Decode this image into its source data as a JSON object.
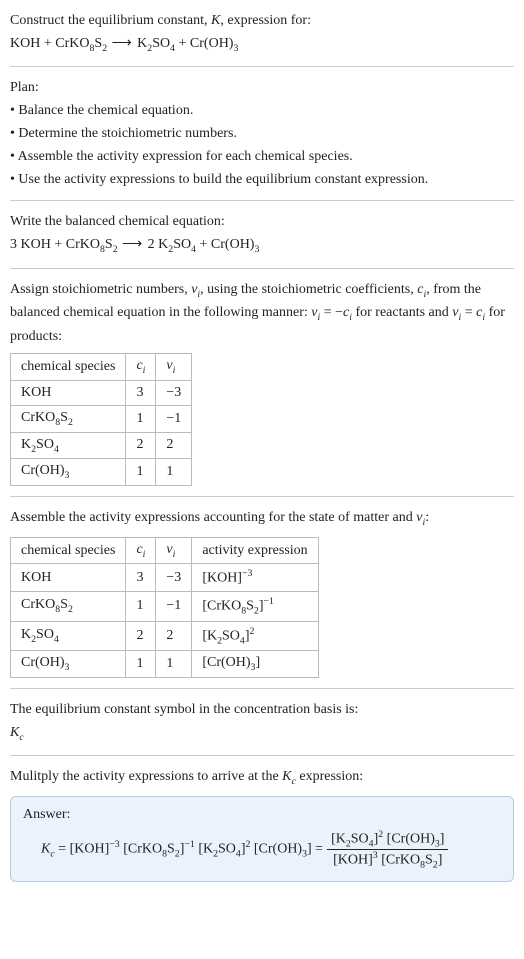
{
  "header": {
    "prompt": "Construct the equilibrium constant, ",
    "kvar": "K",
    "prompt2": ", expression for:"
  },
  "eq1": {
    "lhs1": "KOH",
    "plus1": " + ",
    "lhs2_a": "CrKO",
    "lhs2_sub1": "8",
    "lhs2_b": "S",
    "lhs2_sub2": "2",
    "arrow": " ⟶ ",
    "rhs1_a": "K",
    "rhs1_sub1": "2",
    "rhs1_b": "SO",
    "rhs1_sub2": "4",
    "plus2": " + ",
    "rhs2_a": "Cr(OH)",
    "rhs2_sub": "3"
  },
  "plan": {
    "title": "Plan:",
    "b1": "• Balance the chemical equation.",
    "b2": "• Determine the stoichiometric numbers.",
    "b3": "• Assemble the activity expression for each chemical species.",
    "b4": "• Use the activity expressions to build the equilibrium constant expression."
  },
  "balanced": {
    "title": "Write the balanced chemical equation:",
    "c1": "3 KOH",
    "plus1": " + ",
    "c2a": "CrKO",
    "c2s1": "8",
    "c2b": "S",
    "c2s2": "2",
    "arrow": " ⟶ ",
    "c3pre": "2 K",
    "c3s1": "2",
    "c3b": "SO",
    "c3s2": "4",
    "plus2": " + ",
    "c4a": "Cr(OH)",
    "c4s": "3"
  },
  "assign": {
    "t1": "Assign stoichiometric numbers, ",
    "nu": "ν",
    "nusub": "i",
    "t2": ", using the stoichiometric coefficients, ",
    "c": "c",
    "csub": "i",
    "t3": ", from the balanced chemical equation in the following manner: ",
    "rel1a": "ν",
    "rel1b": "i",
    "rel1c": " = −",
    "rel1d": "c",
    "rel1e": "i",
    "t4": " for reactants and ",
    "rel2a": "ν",
    "rel2b": "i",
    "rel2c": " = ",
    "rel2d": "c",
    "rel2e": "i",
    "t5": " for products:"
  },
  "table1": {
    "h1": "chemical species",
    "h2": "c",
    "h2sub": "i",
    "h3": "ν",
    "h3sub": "i",
    "r1c1": "KOH",
    "r1c2": "3",
    "r1c3": "−3",
    "r2c1a": "CrKO",
    "r2c1s1": "8",
    "r2c1b": "S",
    "r2c1s2": "2",
    "r2c2": "1",
    "r2c3": "−1",
    "r3c1a": "K",
    "r3c1s1": "2",
    "r3c1b": "SO",
    "r3c1s2": "4",
    "r3c2": "2",
    "r3c3": "2",
    "r4c1a": "Cr(OH)",
    "r4c1s": "3",
    "r4c2": "1",
    "r4c3": "1"
  },
  "assemble": {
    "t1": "Assemble the activity expressions accounting for the state of matter and ",
    "nu": "ν",
    "nusub": "i",
    "t2": ":"
  },
  "table2": {
    "h1": "chemical species",
    "h2": "c",
    "h2sub": "i",
    "h3": "ν",
    "h3sub": "i",
    "h4": "activity expression",
    "r1c1": "KOH",
    "r1c2": "3",
    "r1c3": "−3",
    "r1c4a": "[KOH]",
    "r1c4sup": "−3",
    "r2c1a": "CrKO",
    "r2c1s1": "8",
    "r2c1b": "S",
    "r2c1s2": "2",
    "r2c2": "1",
    "r2c3": "−1",
    "r2c4a": "[CrKO",
    "r2c4s1": "8",
    "r2c4b": "S",
    "r2c4s2": "2",
    "r2c4c": "]",
    "r2c4sup": "−1",
    "r3c1a": "K",
    "r3c1s1": "2",
    "r3c1b": "SO",
    "r3c1s2": "4",
    "r3c2": "2",
    "r3c3": "2",
    "r3c4a": "[K",
    "r3c4s1": "2",
    "r3c4b": "SO",
    "r3c4s2": "4",
    "r3c4c": "]",
    "r3c4sup": "2",
    "r4c1a": "Cr(OH)",
    "r4c1s": "3",
    "r4c2": "1",
    "r4c3": "1",
    "r4c4a": "[Cr(OH)",
    "r4c4s": "3",
    "r4c4b": "]"
  },
  "symbol": {
    "t1": "The equilibrium constant symbol in the concentration basis is:",
    "k": "K",
    "ksub": "c"
  },
  "mult": {
    "t1": "Mulitply the activity expressions to arrive at the ",
    "k": "K",
    "ksub": "c",
    "t2": " expression:"
  },
  "answer": {
    "label": "Answer:",
    "k": "K",
    "ksub": "c",
    "eq": " = ",
    "p1a": "[KOH]",
    "p1sup": "−3",
    "p2a": " [CrKO",
    "p2s1": "8",
    "p2b": "S",
    "p2s2": "2",
    "p2c": "]",
    "p2sup": "−1",
    "p3a": " [K",
    "p3s1": "2",
    "p3b": "SO",
    "p3s2": "4",
    "p3c": "]",
    "p3sup": "2",
    "p4a": " [Cr(OH)",
    "p4s": "3",
    "p4b": "] = ",
    "num1a": "[K",
    "num1s1": "2",
    "num1b": "SO",
    "num1s2": "4",
    "num1c": "]",
    "num1sup": "2",
    "num2a": " [Cr(OH)",
    "num2s": "3",
    "num2b": "]",
    "den1a": "[KOH]",
    "den1sup": "3",
    "den2a": " [CrKO",
    "den2s1": "8",
    "den2b": "S",
    "den2s2": "2",
    "den2c": "]"
  }
}
